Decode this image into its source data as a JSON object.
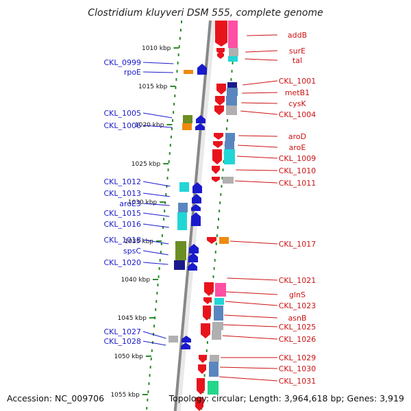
{
  "title": "Clostridium kluyveri DSM 555, complete genome",
  "footer": {
    "accession": "Accession: NC_009706",
    "topology": "Topology: circular; Length: 3,964,618 bp; Genes: 3,919"
  },
  "colors": {
    "forward_cds": "#e8141c",
    "reverse_cds": "#1a1acc",
    "left_label": "#1a1acc",
    "right_label": "#cc1111",
    "backbone": "#888888",
    "tick_dots": "#2a8a2a",
    "cog_steel": "#5a86bf",
    "cog_cyan": "#22d6d6",
    "cog_gray": "#b0b0b0",
    "cog_pink": "#ff4fa3",
    "cog_orange": "#f08a10",
    "cog_olive": "#6b8e23",
    "cog_navy": "#1a1a8c",
    "cog_green": "#22d68a"
  },
  "scale": {
    "ticks": [
      "1010 kbp",
      "1015 kbp",
      "1020 kbp",
      "1025 kbp",
      "1030 kbp",
      "1035 kbp",
      "1040 kbp",
      "1045 kbp",
      "1050 kbp",
      "1055 kbp"
    ]
  },
  "left_genes": [
    {
      "name": "CKL_0999",
      "box": "none"
    },
    {
      "name": "rpoE",
      "box": "orange"
    },
    {
      "name": "CKL_1005",
      "box": "olive"
    },
    {
      "name": "CKL_1006",
      "box": "orange"
    },
    {
      "name": "CKL_1012",
      "box": "cyan"
    },
    {
      "name": "CKL_1013",
      "box": "none"
    },
    {
      "name": "aroE3",
      "box": "steel"
    },
    {
      "name": "CKL_1015",
      "box": "cyan"
    },
    {
      "name": "CKL_1016",
      "box": "cyan"
    },
    {
      "name": "CKL_1018",
      "box": "olive"
    },
    {
      "name": "spsC",
      "box": "olive"
    },
    {
      "name": "CKL_1020",
      "box": "navy"
    },
    {
      "name": "CKL_1027",
      "box": "gray"
    },
    {
      "name": "CKL_1028",
      "box": "none"
    }
  ],
  "right_genes": [
    {
      "name": "addB",
      "box": "pink"
    },
    {
      "name": "surE",
      "box": "gray"
    },
    {
      "name": "tal",
      "box": "cyan"
    },
    {
      "name": "CKL_1001",
      "box": "navy"
    },
    {
      "name": "metB1",
      "box": "steel"
    },
    {
      "name": "cysK",
      "box": "steel"
    },
    {
      "name": "CKL_1004",
      "box": "gray"
    },
    {
      "name": "aroD",
      "box": "steel"
    },
    {
      "name": "aroE",
      "box": "steel"
    },
    {
      "name": "CKL_1009",
      "box": "cyan"
    },
    {
      "name": "CKL_1010",
      "box": "none"
    },
    {
      "name": "CKL_1011",
      "box": "gray"
    },
    {
      "name": "CKL_1017",
      "box": "orange"
    },
    {
      "name": "CKL_1021",
      "box": "none"
    },
    {
      "name": "glnS",
      "box": "pink"
    },
    {
      "name": "CKL_1023",
      "box": "cyan"
    },
    {
      "name": "asnB",
      "box": "steel"
    },
    {
      "name": "CKL_1025",
      "box": "gray"
    },
    {
      "name": "CKL_1026",
      "box": "gray"
    },
    {
      "name": "CKL_1029",
      "box": "gray"
    },
    {
      "name": "CKL_1030",
      "box": "steel"
    },
    {
      "name": "CKL_1031",
      "box": "green"
    }
  ]
}
